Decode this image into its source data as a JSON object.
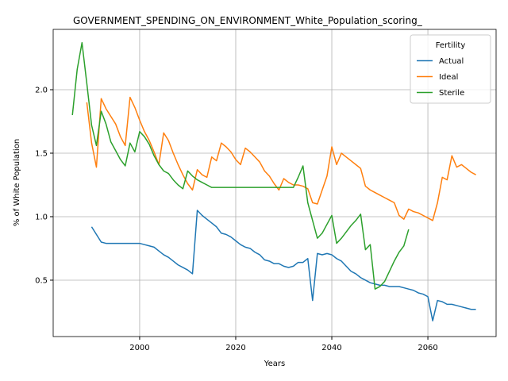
{
  "chart_data": {
    "type": "line",
    "title": "GOVERNMENT_SPENDING_ON_ENVIRONMENT_White_Population_scoring_",
    "xlabel": "Years",
    "ylabel": "% of White Population",
    "legend_title": "Fertility",
    "legend": "upper right",
    "grid": true,
    "xlim": [
      1982,
      2074.2
    ],
    "xticks": [
      2000,
      2020,
      2040,
      2060
    ],
    "ylim": [
      0.056,
      2.475
    ],
    "yticks": [
      {
        "value": 0.5,
        "label": "0.5"
      },
      {
        "value": 1,
        "label": "1.0"
      },
      {
        "value": 1.5,
        "label": "1.5"
      },
      {
        "value": 2,
        "label": "2.0"
      }
    ],
    "series": [
      {
        "name": "Actual",
        "color": "#1f77b4",
        "x": [
          1990,
          1991,
          1992,
          1993,
          1994,
          1995,
          1996,
          1997,
          1998,
          1999,
          2000,
          2001,
          2002,
          2003,
          2004,
          2005,
          2006,
          2007,
          2008,
          2009,
          2010,
          2011,
          2012,
          2013,
          2014,
          2015,
          2016,
          2017,
          2018,
          2019,
          2020,
          2021,
          2022,
          2023,
          2024,
          2025,
          2026,
          2027,
          2028,
          2029,
          2030,
          2031,
          2032,
          2033,
          2034,
          2035,
          2036,
          2037,
          2038,
          2039,
          2040,
          2041,
          2042,
          2043,
          2044,
          2045,
          2046,
          2047,
          2048,
          2049,
          2050,
          2051,
          2052,
          2053,
          2054,
          2055,
          2056,
          2057,
          2058,
          2059,
          2060,
          2061,
          2062,
          2063,
          2064,
          2065,
          2066,
          2067,
          2068,
          2069,
          2070
        ],
        "values": [
          0.92,
          0.86,
          0.8,
          0.79,
          0.79,
          0.79,
          0.79,
          0.79,
          0.79,
          0.79,
          0.79,
          0.78,
          0.77,
          0.76,
          0.73,
          0.7,
          0.68,
          0.65,
          0.62,
          0.6,
          0.58,
          0.55,
          1.05,
          1.01,
          0.98,
          0.95,
          0.92,
          0.87,
          0.86,
          0.84,
          0.81,
          0.78,
          0.76,
          0.75,
          0.72,
          0.7,
          0.66,
          0.65,
          0.63,
          0.63,
          0.61,
          0.6,
          0.61,
          0.64,
          0.64,
          0.67,
          0.34,
          0.71,
          0.7,
          0.71,
          0.7,
          0.67,
          0.65,
          0.61,
          0.57,
          0.55,
          0.52,
          0.5,
          0.48,
          0.47,
          0.46,
          0.46,
          0.45,
          0.45,
          0.45,
          0.44,
          0.43,
          0.42,
          0.4,
          0.39,
          0.37,
          0.18,
          0.34,
          0.33,
          0.31,
          0.31,
          0.3,
          0.29,
          0.28,
          0.27,
          0.27
        ]
      },
      {
        "name": "Ideal",
        "color": "#ff7f0e",
        "x": [
          1989,
          1990,
          1991,
          1992,
          1993,
          1994,
          1995,
          1996,
          1997,
          1998,
          1999,
          2000,
          2001,
          2002,
          2003,
          2004,
          2005,
          2006,
          2007,
          2008,
          2009,
          2010,
          2011,
          2012,
          2013,
          2014,
          2015,
          2016,
          2017,
          2018,
          2019,
          2020,
          2021,
          2022,
          2023,
          2024,
          2025,
          2026,
          2027,
          2028,
          2029,
          2030,
          2031,
          2032,
          2033,
          2034,
          2035,
          2036,
          2037,
          2038,
          2039,
          2040,
          2041,
          2042,
          2043,
          2044,
          2045,
          2046,
          2047,
          2048,
          2049,
          2050,
          2051,
          2052,
          2053,
          2054,
          2055,
          2056,
          2057,
          2058,
          2059,
          2060,
          2061,
          2062,
          2063,
          2064,
          2065,
          2066,
          2067,
          2068,
          2069,
          2070
        ],
        "values": [
          1.9,
          1.58,
          1.39,
          1.93,
          1.85,
          1.79,
          1.73,
          1.63,
          1.56,
          1.94,
          1.86,
          1.76,
          1.67,
          1.6,
          1.51,
          1.41,
          1.66,
          1.6,
          1.5,
          1.41,
          1.33,
          1.26,
          1.21,
          1.37,
          1.33,
          1.31,
          1.47,
          1.44,
          1.58,
          1.55,
          1.51,
          1.45,
          1.41,
          1.54,
          1.51,
          1.47,
          1.43,
          1.36,
          1.32,
          1.26,
          1.21,
          1.3,
          1.27,
          1.25,
          1.25,
          1.24,
          1.22,
          1.11,
          1.1,
          1.21,
          1.32,
          1.55,
          1.41,
          1.5,
          1.47,
          1.44,
          1.41,
          1.38,
          1.24,
          1.21,
          1.19,
          1.17,
          1.15,
          1.13,
          1.11,
          1.01,
          0.98,
          1.06,
          1.04,
          1.03,
          1.01,
          0.99,
          0.97,
          1.11,
          1.31,
          1.29,
          1.48,
          1.39,
          1.41,
          1.38,
          1.35,
          1.33
        ]
      },
      {
        "name": "Sterile",
        "color": "#2ca02c",
        "x": [
          1986,
          1987,
          1988,
          1989,
          1990,
          1991,
          1992,
          1993,
          1994,
          1995,
          1996,
          1997,
          1998,
          1999,
          2000,
          2001,
          2002,
          2003,
          2004,
          2005,
          2006,
          2007,
          2008,
          2009,
          2010,
          2011,
          2012,
          2013,
          2014,
          2015,
          2016,
          2017,
          2018,
          2019,
          2020,
          2021,
          2022,
          2023,
          2024,
          2025,
          2026,
          2027,
          2028,
          2029,
          2030,
          2031,
          2032,
          2033,
          2034,
          2035,
          2036,
          2037,
          2038,
          2039,
          2040,
          2041,
          2042,
          2043,
          2044,
          2045,
          2046,
          2047,
          2048,
          2049,
          2050,
          2051,
          2052,
          2053,
          2054,
          2055,
          2056
        ],
        "values": [
          1.8,
          2.16,
          2.37,
          2.05,
          1.72,
          1.56,
          1.83,
          1.73,
          1.59,
          1.52,
          1.45,
          1.4,
          1.58,
          1.51,
          1.67,
          1.63,
          1.57,
          1.48,
          1.41,
          1.36,
          1.34,
          1.29,
          1.25,
          1.22,
          1.36,
          1.32,
          1.29,
          1.27,
          1.25,
          1.23,
          1.23,
          1.23,
          1.23,
          1.23,
          1.23,
          1.23,
          1.23,
          1.23,
          1.23,
          1.23,
          1.23,
          1.23,
          1.23,
          1.23,
          1.23,
          1.23,
          1.23,
          1.31,
          1.4,
          1.11,
          0.97,
          0.83,
          0.87,
          0.94,
          1.01,
          0.79,
          0.83,
          0.88,
          0.93,
          0.97,
          1.02,
          0.74,
          0.78,
          0.43,
          0.45,
          0.49,
          0.57,
          0.65,
          0.72,
          0.77,
          0.9
        ]
      }
    ]
  }
}
